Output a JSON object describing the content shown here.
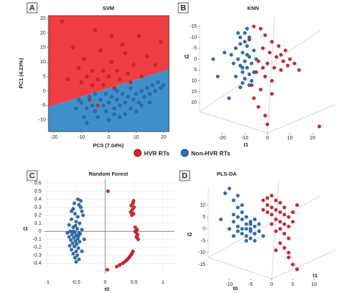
{
  "chart_data": [
    {
      "type": "scatter",
      "panel_label": "A",
      "title": "SVM",
      "x_label": "PC0 (7.04%)",
      "y_label": "PC1 (4.23%)",
      "xlim": [
        -22,
        22
      ],
      "ylim": [
        -14,
        26
      ],
      "xticks": [
        -20,
        -10,
        0,
        10,
        20
      ],
      "yticks": [
        -10,
        -5,
        0,
        5,
        10,
        15,
        20,
        25
      ],
      "frame": true,
      "regions": true,
      "region_colors": [
        "#ee3e42",
        "#3f90c8"
      ],
      "boundary": {
        "x": [
          -22,
          22
        ],
        "y": [
          -5.5,
          7.5
        ]
      },
      "series": [
        {
          "name": "HVR RTs",
          "color": "#d8232a",
          "x": [
            -17,
            -5,
            1,
            11,
            19,
            -13,
            -3,
            6,
            14,
            -9,
            1,
            9,
            -11,
            -6,
            -2,
            3,
            7,
            -8,
            -4,
            0,
            4,
            8,
            12,
            -10,
            -6,
            -2,
            2,
            17,
            -15,
            5,
            -7,
            -4
          ],
          "y": [
            24,
            21,
            19,
            19,
            17,
            15,
            14,
            13,
            12,
            11,
            10,
            9,
            8,
            7,
            7,
            7,
            6,
            5,
            4,
            5,
            4,
            3,
            5,
            3,
            2,
            2,
            1,
            9,
            4,
            16,
            -3,
            -5
          ]
        },
        {
          "name": "Non-HVR RTs",
          "color": "#2a6fb6",
          "x": [
            -10,
            -8,
            -6,
            -5,
            -3,
            -2,
            -1,
            0,
            1,
            2,
            3,
            4,
            5,
            6,
            7,
            8,
            9,
            10,
            11,
            12,
            13,
            14,
            15,
            16,
            17,
            18,
            19,
            20,
            -12,
            -9,
            -4,
            2,
            6,
            10,
            -7,
            -1,
            3,
            8,
            12,
            -11,
            -5,
            4,
            0,
            -8,
            15
          ],
          "y": [
            -4,
            -6,
            -5,
            -7,
            -3,
            -5,
            -7,
            -4,
            -2,
            -6,
            -3,
            -5,
            -1,
            -4,
            -2,
            -6,
            -3,
            -1,
            -4,
            0,
            -2,
            1,
            -1,
            2,
            0,
            3,
            1,
            2,
            -6,
            -9,
            -9,
            -8,
            -8,
            -7,
            -2,
            -1,
            0,
            1,
            -5,
            -3,
            -1,
            -9,
            -10,
            -11,
            -4
          ]
        }
      ]
    },
    {
      "type": "scatter",
      "panel_label": "B",
      "title": "KNN",
      "x_label": "t1",
      "y_label": "t2",
      "xlim": [
        -30,
        30
      ],
      "ylim": [
        34,
        -20
      ],
      "xticks": [
        -20,
        -10,
        0,
        10,
        20
      ],
      "yticks": [
        -15,
        -10,
        -5,
        0,
        5,
        10,
        15,
        20
      ],
      "box3d": true,
      "series": [
        {
          "color": "#2a6fb6",
          "x": [
            -12,
            -10,
            -14,
            -11,
            -9,
            -13,
            -10,
            -8,
            -12,
            -9,
            -11,
            -7,
            -14,
            -10,
            -8,
            -6,
            -13,
            -9,
            -15,
            -11,
            -7,
            -16,
            -12,
            -8,
            -5,
            -19,
            -22,
            -17,
            -6,
            -10,
            -12,
            -9,
            -11,
            -8,
            -24
          ],
          "y": [
            -10,
            -8,
            -5,
            -3,
            -6,
            0,
            1,
            -1,
            3,
            4,
            6,
            2,
            8,
            9,
            7,
            -4,
            -12,
            -14,
            2,
            11,
            10,
            -2,
            13,
            -10,
            0,
            -3,
            8,
            18,
            6,
            -12,
            -7,
            -2,
            4,
            12,
            0
          ]
        },
        {
          "color": "#d8232a",
          "x": [
            -6,
            -3,
            -1,
            2,
            5,
            8,
            -2,
            1,
            4,
            7,
            10,
            -4,
            0,
            3,
            6,
            9,
            12,
            -5,
            -1,
            2,
            -3,
            -6,
            -4,
            -1,
            0,
            -8,
            14,
            6,
            2,
            -7,
            23,
            -2
          ],
          "y": [
            -15,
            -14,
            -11,
            -8,
            -6,
            -4,
            -5,
            -3,
            -1,
            1,
            0,
            1,
            2,
            4,
            5,
            3,
            2,
            6,
            8,
            10,
            14,
            18,
            22,
            26,
            30,
            -9,
            5,
            -2,
            16,
            12,
            31,
            4
          ]
        }
      ]
    },
    {
      "type": "scatter",
      "panel_label": "C",
      "title": "Random Forest",
      "x_label": "t0",
      "y_label": "t1",
      "xlim": [
        -1.05,
        1.2
      ],
      "ylim": [
        -0.53,
        0.65
      ],
      "xticks": [
        -1,
        -0.5,
        0,
        0.5,
        1
      ],
      "yticks": [
        0.6,
        0.5,
        0.4,
        0.3,
        0.2,
        0.1,
        0,
        -0.1,
        -0.2,
        -0.3,
        -0.4
      ],
      "grid": true,
      "zero_axes": true,
      "series": [
        {
          "color": "#2a6fb6",
          "x": [
            -0.42,
            -0.45,
            -0.4,
            -0.55,
            -0.52,
            -0.47,
            -0.58,
            -0.5,
            -0.44,
            -0.62,
            -0.55,
            -0.48,
            -0.4,
            -0.6,
            -0.52,
            -0.45,
            -0.57,
            -0.5,
            -0.43,
            -0.62,
            -0.54,
            -0.47,
            -0.59,
            -0.51,
            -0.44,
            -0.56,
            -0.49,
            -0.61,
            -0.53,
            -0.46,
            -0.58,
            -0.5,
            -0.55,
            -0.48,
            -0.52,
            -0.45,
            -0.5,
            -0.42,
            -0.47,
            -0.53,
            -0.38,
            -0.36,
            -0.4,
            -0.58,
            -0.65,
            -0.51,
            -0.46,
            -0.55
          ],
          "y": [
            0.3,
            0.33,
            0.25,
            0.28,
            0.22,
            0.18,
            0.15,
            0.12,
            0.1,
            0.08,
            0.05,
            0.03,
            0.02,
            0,
            -0.01,
            -0.02,
            -0.04,
            -0.05,
            -0.03,
            -0.07,
            -0.08,
            -0.09,
            -0.11,
            -0.12,
            -0.13,
            -0.15,
            -0.16,
            -0.18,
            -0.19,
            -0.21,
            -0.23,
            -0.25,
            -0.28,
            -0.3,
            -0.33,
            -0.35,
            -0.38,
            0.38,
            0.4,
            0.35,
            0.2,
            -0.1,
            -0.25,
            0.25,
            -0.02,
            0.07,
            -0.06,
            0
          ]
        },
        {
          "color": "#d8232a",
          "x": [
            0.48,
            0.45,
            0.5,
            0.47,
            0.44,
            0.49,
            0.46,
            0.52,
            0.55,
            0.53,
            0.56,
            0.54,
            0.57,
            0.52,
            0.55,
            0.46,
            0.44,
            0.42,
            0.4,
            0.37,
            0.34,
            0.3,
            0.25,
            0.2,
            0.48,
            0.05,
            0.04,
            0.49
          ],
          "y": [
            0.35,
            0.32,
            0.3,
            0.27,
            0.24,
            0.22,
            0.2,
            0.05,
            0.02,
            -0.01,
            -0.04,
            -0.07,
            -0.1,
            0,
            -0.06,
            -0.28,
            -0.3,
            -0.32,
            -0.34,
            -0.36,
            -0.38,
            -0.4,
            -0.42,
            -0.44,
            -0.25,
            0.5,
            -0.48,
            0.38
          ]
        }
      ]
    },
    {
      "type": "scatter",
      "panel_label": "D",
      "title": "PLS-DA",
      "x_label": "t0",
      "y_label": "t2",
      "z_label": "t1",
      "xlim": [
        -15,
        15
      ],
      "ylim": [
        -21,
        20
      ],
      "xticks": [
        -10,
        -5,
        0,
        5,
        10
      ],
      "yticks": [
        10,
        5,
        0,
        -5,
        -10,
        -15
      ],
      "box3d": true,
      "series": [
        {
          "color": "#2a6fb6",
          "x": [
            -9,
            -8,
            -7,
            -6,
            -5,
            -8,
            -7,
            -6,
            -5,
            -4,
            -9,
            -3,
            -6,
            -7,
            -8,
            -5,
            -4,
            -10,
            -3,
            -6,
            -7,
            -5,
            -8,
            -9,
            -10,
            -11,
            -4,
            -6,
            -2,
            -9,
            -12,
            -8,
            -7,
            -4,
            -5
          ],
          "y": [
            3,
            1,
            4,
            2,
            0,
            -1,
            -2,
            -3,
            3,
            1,
            -3,
            -1,
            5,
            7,
            9,
            -4,
            -2,
            0,
            2,
            0,
            0,
            2,
            5,
            12,
            17,
            15,
            -5,
            -5,
            -3,
            6,
            4,
            14,
            10,
            4,
            -1
          ]
        },
        {
          "color": "#d8232a",
          "x": [
            -1,
            0,
            1,
            2,
            -1,
            0,
            1,
            2,
            3,
            0,
            1,
            2,
            3,
            4,
            -2,
            3,
            -1,
            2,
            3,
            4,
            1,
            4,
            5,
            0,
            2,
            3,
            4,
            5,
            6,
            1,
            4,
            -2,
            6,
            5
          ],
          "y": [
            13,
            14,
            12,
            11,
            10,
            9,
            8,
            7,
            6,
            6,
            4,
            3,
            2,
            1,
            12,
            9,
            7,
            0,
            -2,
            -4,
            -1,
            5,
            3,
            2,
            -6,
            -8,
            -12,
            -15,
            -17,
            -9,
            -10,
            8,
            10,
            7
          ]
        }
      ]
    }
  ]
}
